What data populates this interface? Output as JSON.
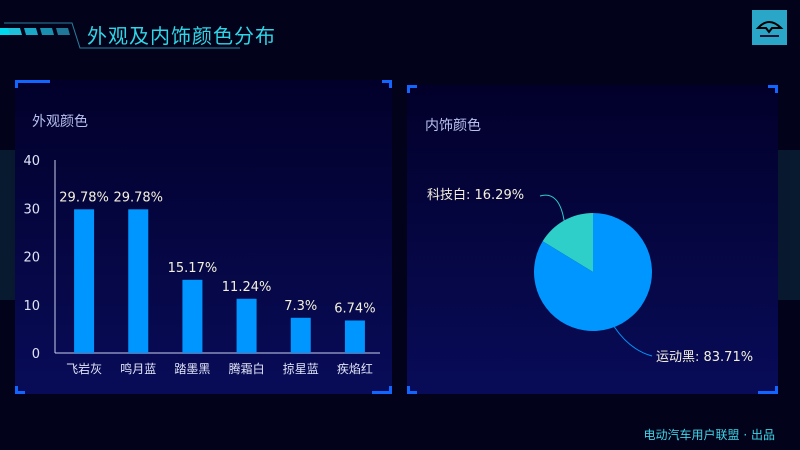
{
  "header": {
    "title": "外观及内饰颜色分布"
  },
  "footer": {
    "text": "电动汽车用户联盟 · 出品"
  },
  "colors": {
    "bar": "#0096ff",
    "pie_main": "#0096ff",
    "pie_minor": "#2ecfc8",
    "accent": "#2fd6e8"
  },
  "chart_data": [
    {
      "type": "bar",
      "title": "外观颜色",
      "categories": [
        "飞岩灰",
        "鸣月蓝",
        "踏墨黑",
        "腾霜白",
        "掠星蓝",
        "疾焰红"
      ],
      "values": [
        29.78,
        29.78,
        15.17,
        11.24,
        7.3,
        6.74
      ],
      "data_labels": [
        "29.78%",
        "29.78%",
        "15.17%",
        "11.24%",
        "7.3%",
        "6.74%"
      ],
      "ylim": [
        0,
        40
      ],
      "yticks": [
        "0",
        "10",
        "20",
        "30",
        "40"
      ],
      "grid": false
    },
    {
      "type": "pie",
      "title": "内饰颜色",
      "slices": [
        {
          "name": "科技白",
          "value": 16.29,
          "label": "科技白: 16.29%"
        },
        {
          "name": "运动黑",
          "value": 83.71,
          "label": "运动黑: 83.71%"
        }
      ]
    }
  ]
}
